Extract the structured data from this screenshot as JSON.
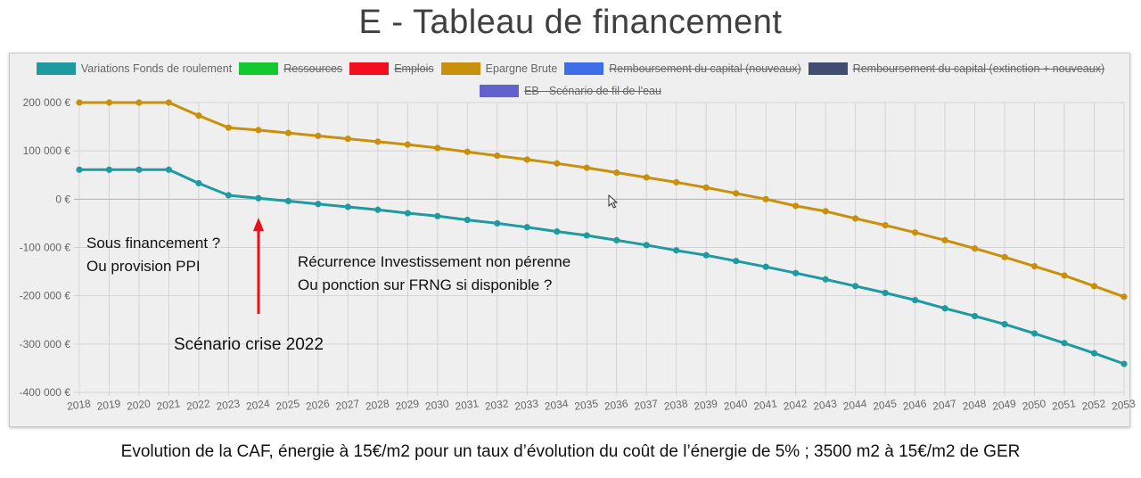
{
  "title": "E - Tableau de financement",
  "caption": "Evolution de la CAF, énergie à 15€/m2 pour un taux d’évolution du coût de l’énergie de 5% ; 3500 m2 à 15€/m2 de GER",
  "annotations": {
    "left_line1": "Sous financement  ?",
    "left_line2": "Ou provision  PPI",
    "middle_line1": "Récurrence  Investissement  non pérenne",
    "middle_line2": "Ou ponction sur FRNG si disponible ?",
    "scenario": "Scénario crise 2022"
  },
  "colors": {
    "arrow": "#e8101a",
    "grid": "#d4d4d4",
    "zero_line": "#b0b0b0",
    "axis_text": "#666666"
  },
  "chart_data": {
    "type": "line",
    "legend": [
      {
        "label": "Variations Fonds de roulement",
        "color": "#1e9aa0",
        "active": true
      },
      {
        "label": "Ressources",
        "color": "#12c932",
        "active": false
      },
      {
        "label": "Emplois",
        "color": "#f2101e",
        "active": false
      },
      {
        "label": "Epargne Brute",
        "color": "#c8900c",
        "active": true
      },
      {
        "label": "Remboursement du capital (nouveaux)",
        "color": "#3f6ee8",
        "active": false
      },
      {
        "label": "Remboursement du capital (extinction + nouveaux)",
        "color": "#414d70",
        "active": false
      },
      {
        "label": "EB - Scénario de fil de l'eau",
        "color": "#6361cc",
        "active": false
      }
    ],
    "categories": [
      "2018",
      "2019",
      "2020",
      "2021",
      "2022",
      "2023",
      "2024",
      "2025",
      "2026",
      "2027",
      "2028",
      "2029",
      "2030",
      "2031",
      "2032",
      "2033",
      "2034",
      "2035",
      "2036",
      "2037",
      "2038",
      "2039",
      "2040",
      "2041",
      "2042",
      "2043",
      "2044",
      "2045",
      "2046",
      "2047",
      "2048",
      "2049",
      "2050",
      "2051",
      "2052",
      "2053"
    ],
    "series": [
      {
        "name": "Epargne Brute",
        "color": "#c8900c",
        "values": [
          200000,
          200000,
          200000,
          200000,
          173000,
          148000,
          143000,
          137000,
          131000,
          125000,
          119000,
          113000,
          106000,
          98000,
          90000,
          82000,
          74000,
          65000,
          55000,
          45000,
          35000,
          24000,
          12000,
          0,
          -14000,
          -25000,
          -40000,
          -54000,
          -69000,
          -85000,
          -102000,
          -120000,
          -139000,
          -158000,
          -180000,
          -202000
        ]
      },
      {
        "name": "Variations Fonds de roulement",
        "color": "#1e9aa0",
        "values": [
          61000,
          61000,
          61000,
          61000,
          33000,
          8000,
          2000,
          -4000,
          -10000,
          -16000,
          -22000,
          -29000,
          -35000,
          -43000,
          -50000,
          -58000,
          -67000,
          -75000,
          -85000,
          -95000,
          -106000,
          -116000,
          -128000,
          -140000,
          -153000,
          -166000,
          -180000,
          -194000,
          -209000,
          -226000,
          -242000,
          -259000,
          -278000,
          -298000,
          -319000,
          -341000
        ]
      }
    ],
    "ylim": [
      -400000,
      200000
    ],
    "yticks": [
      200000,
      100000,
      0,
      -100000,
      -200000,
      -300000,
      -400000
    ],
    "ytick_labels": [
      "200 000 €",
      "100 000 €",
      "0 €",
      "-100 000 €",
      "-200 000 €",
      "-300 000 €",
      "-400 000 €"
    ],
    "grid": true,
    "legend_position": "top-center"
  }
}
